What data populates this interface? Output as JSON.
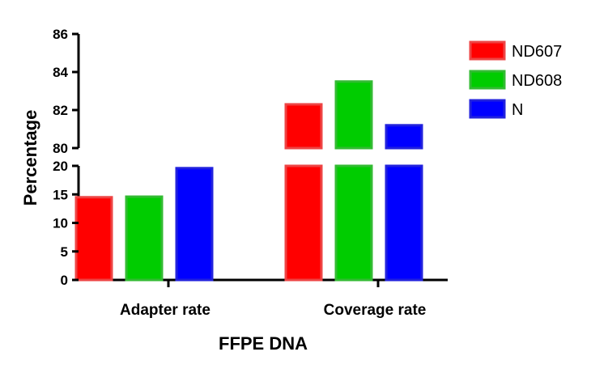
{
  "chart_data": {
    "type": "bar",
    "broken_y_axis": true,
    "xlabel": "FFPE DNA",
    "ylabel": "Percentage",
    "categories": [
      "Adapter rate",
      "Coverage rate"
    ],
    "series": [
      {
        "name": "ND607",
        "color": "#ff0000",
        "values": [
          14.5,
          82.3
        ]
      },
      {
        "name": "ND608",
        "color": "#00cc00",
        "values": [
          14.6,
          83.5
        ]
      },
      {
        "name": "N",
        "color": "#0000ff",
        "values": [
          19.6,
          81.2
        ]
      }
    ],
    "lower_segment": {
      "ylim": [
        0,
        20
      ],
      "ticks": [
        "0",
        "5",
        "10",
        "15",
        "20"
      ]
    },
    "upper_segment": {
      "ylim": [
        80,
        86
      ],
      "ticks": [
        "80",
        "82",
        "84",
        "86"
      ]
    },
    "legend_position": "right",
    "grid": false
  }
}
